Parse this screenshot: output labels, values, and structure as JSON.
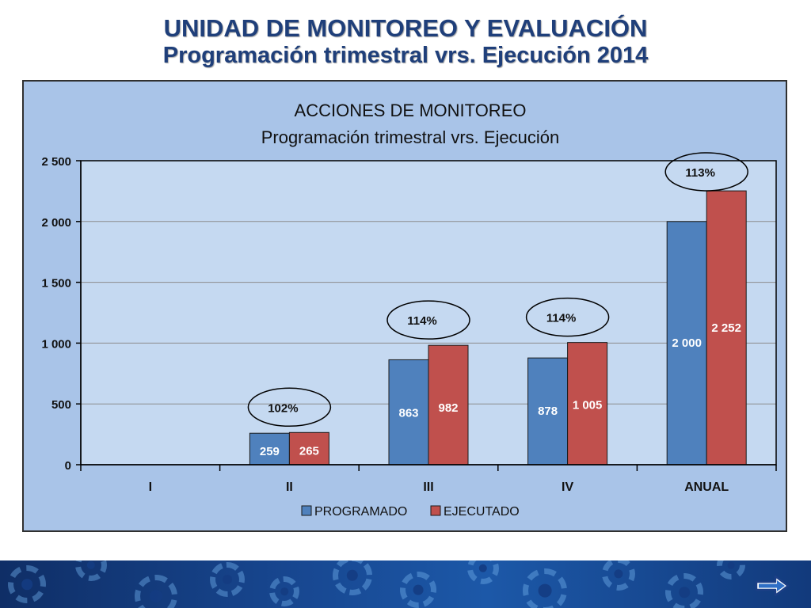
{
  "slide": {
    "title_line1": "UNIDAD DE MONITOREO Y EVALUACIÓN",
    "title_line2": "Programación trimestral vrs. Ejecución 2014"
  },
  "chart_data": {
    "type": "bar",
    "title": "ACCIONES DE MONITOREO",
    "subtitle": "Programación trimestral vrs. Ejecución",
    "categories": [
      "I",
      "II",
      "III",
      "IV",
      "ANUAL"
    ],
    "series": [
      {
        "name": "PROGRAMADO",
        "color": "#4f81bd",
        "values": [
          null,
          259,
          863,
          878,
          2000
        ],
        "labels": [
          "",
          "259",
          "863",
          "878",
          "2 000"
        ]
      },
      {
        "name": "EJECUTADO",
        "color": "#c0504d",
        "values": [
          null,
          265,
          982,
          1005,
          2252
        ],
        "labels": [
          "",
          "265",
          "982",
          "1 005",
          "2 252"
        ]
      }
    ],
    "percentages": [
      "",
      "102%",
      "114%",
      "114%",
      "113%"
    ],
    "ylim": [
      0,
      2500
    ],
    "yticks": [
      0,
      500,
      1000,
      1500,
      2000,
      2500
    ],
    "ytick_labels": [
      "0",
      "500",
      "1 000",
      "1 500",
      "2 000",
      "2 500"
    ],
    "grid": true,
    "legend_position": "bottom",
    "plot_background": "#c5d9f1"
  },
  "footer": {
    "next_icon": "right-arrow-icon"
  }
}
